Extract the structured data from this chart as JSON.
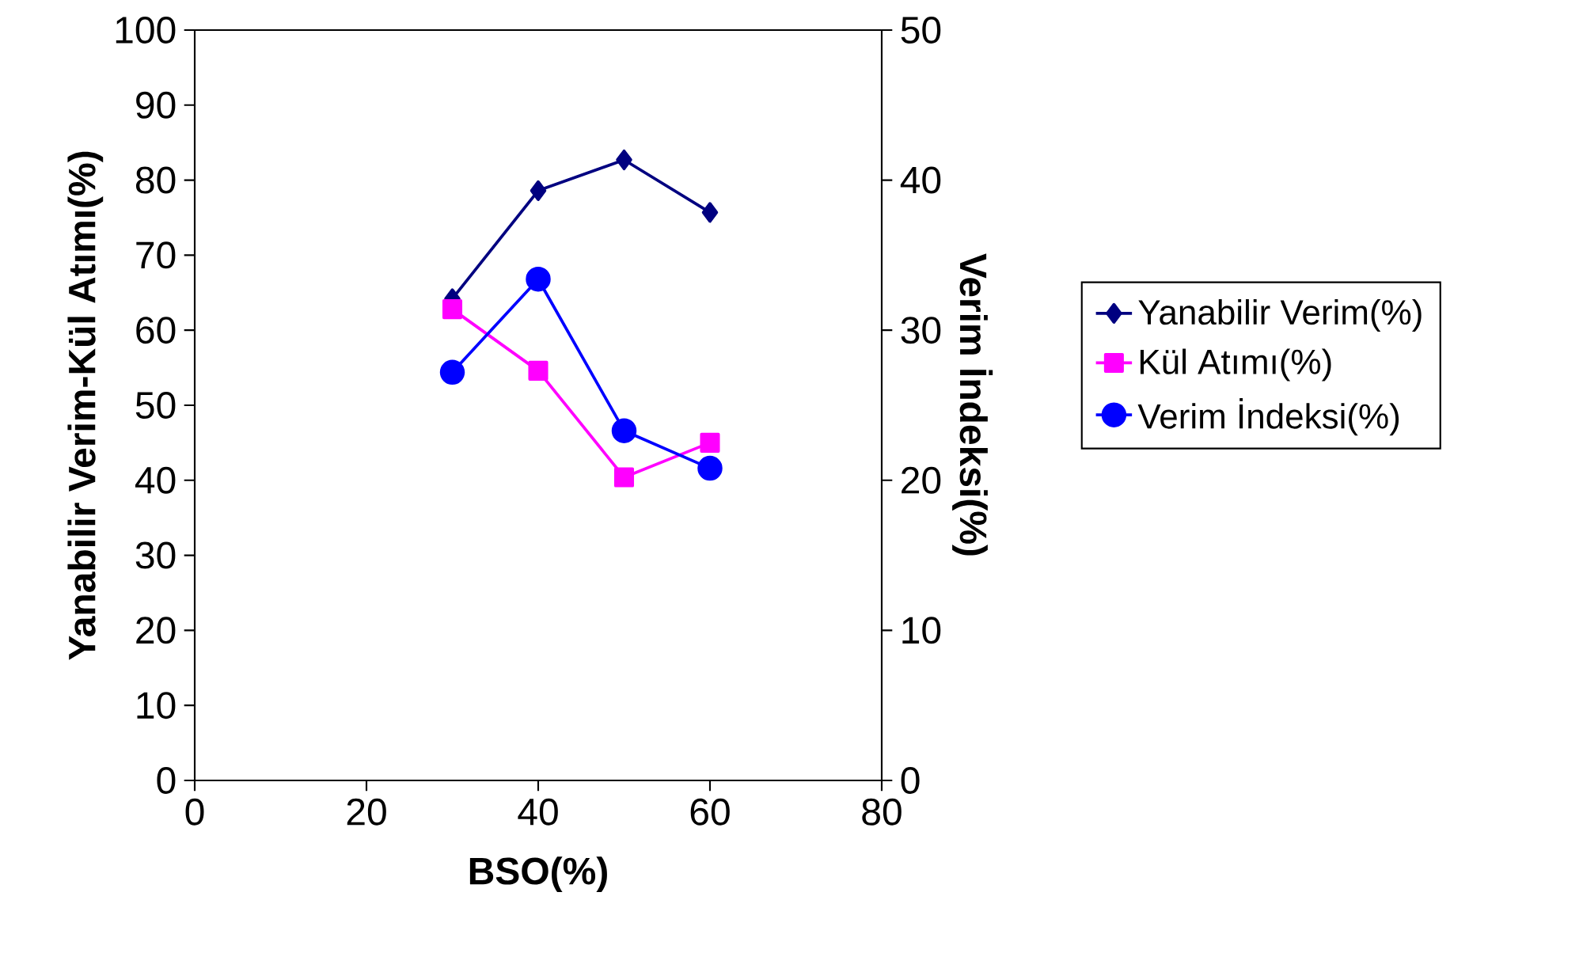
{
  "chart_data": {
    "type": "line",
    "xlabel": "BSO(%)",
    "ylabel": "Yanabilir Verim-Kül Atımı(%)",
    "y2label": "Verim İndeksi(%)",
    "x": [
      30,
      40,
      50,
      60
    ],
    "series": [
      {
        "name": "Yanabilir Verim(%)",
        "color": "#000080",
        "marker": "diamond",
        "values": [
          64.2,
          78.6,
          82.7,
          75.7
        ]
      },
      {
        "name": "Kül Atımı(%)",
        "color": "#ff00ff",
        "marker": "square",
        "values": [
          62.8,
          54.6,
          40.4,
          45.0
        ]
      },
      {
        "name": "Verim İndeksi(%)",
        "color": "#0000ff",
        "marker": "circle",
        "axis": "y2",
        "values": [
          27.2,
          33.4,
          23.3,
          20.8
        ]
      }
    ],
    "xlim": [
      0,
      80
    ],
    "xticks": [
      0,
      20,
      40,
      60,
      80
    ],
    "ylim": [
      0,
      100
    ],
    "yticks": [
      0,
      10,
      20,
      30,
      40,
      50,
      60,
      70,
      80,
      90,
      100
    ],
    "y2lim": [
      0,
      50
    ],
    "y2ticks": [
      0,
      10,
      20,
      30,
      40,
      50
    ],
    "line_style": "solid",
    "grid": false,
    "legend": "right"
  }
}
